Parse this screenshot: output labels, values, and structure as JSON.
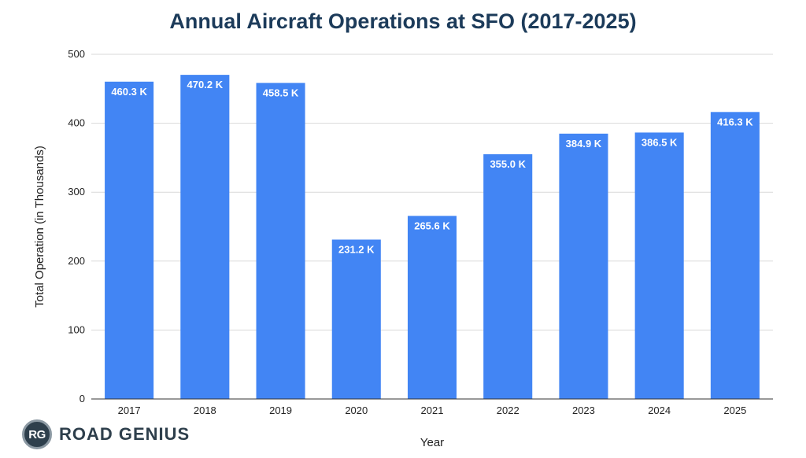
{
  "chart_data": {
    "type": "bar",
    "title": "Annual Aircraft Operations at SFO (2017-2025)",
    "xlabel": "Year",
    "ylabel": "Total Operation (in Thousands)",
    "categories": [
      "2017",
      "2018",
      "2019",
      "2020",
      "2021",
      "2022",
      "2023",
      "2024",
      "2025"
    ],
    "values": [
      460.3,
      470.2,
      458.5,
      231.2,
      265.6,
      355.0,
      384.9,
      386.5,
      416.3
    ],
    "data_labels": [
      "460.3 K",
      "470.2 K",
      "458.5 K",
      "231.2 K",
      "265.6 K",
      "355.0 K",
      "384.9 K",
      "386.5 K",
      "416.3 K"
    ],
    "ylim": [
      0,
      500
    ],
    "yticks": [
      "0",
      "100",
      "200",
      "300",
      "400",
      "500"
    ],
    "grid": true,
    "bar_color": "#4285f4"
  },
  "logo": {
    "badge": "RG",
    "name": "ROAD GENIUS"
  }
}
